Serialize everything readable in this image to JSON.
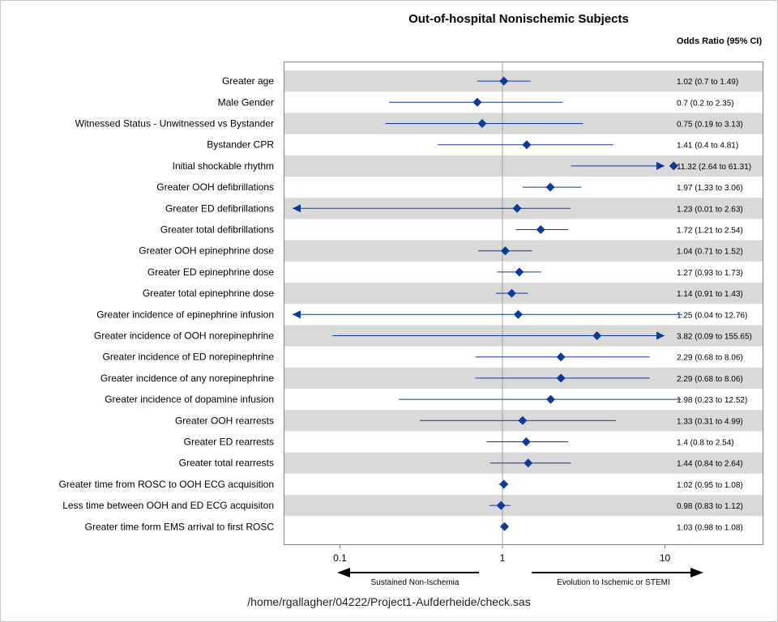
{
  "chart_data": {
    "type": "forest",
    "title": "Out-of-hospital Nonischemic Subjects",
    "estimate_column_header": "Odds Ratio (95% CI)",
    "x_scale": "log",
    "xlim": [
      0.05,
      15
    ],
    "x_ticks": [
      0.1,
      1,
      10
    ],
    "x_tick_labels": [
      "0.1",
      "1",
      "10"
    ],
    "reference_line": 1,
    "direction_labels": {
      "left": "Sustained Non-Ischemia",
      "right": "Evolution to Ischemic or STEMI"
    },
    "rows": [
      {
        "label": "Greater age",
        "or": 1.02,
        "lower": 0.7,
        "upper": 1.49,
        "text": "1.02 (0.7 to 1.49)"
      },
      {
        "label": "Male Gender",
        "or": 0.7,
        "lower": 0.2,
        "upper": 2.35,
        "text": "0.7 (0.2 to 2.35)"
      },
      {
        "label": "Witnessed Status - Unwitnessed vs Bystander",
        "or": 0.75,
        "lower": 0.19,
        "upper": 3.13,
        "text": "0.75 (0.19 to 3.13)"
      },
      {
        "label": "Bystander CPR",
        "or": 1.41,
        "lower": 0.4,
        "upper": 4.81,
        "text": "1.41 (0.4 to 4.81)"
      },
      {
        "label": "Initial shockable rhythm",
        "or": 11.32,
        "lower": 2.64,
        "upper": 61.31,
        "text": "11.32 (2.64 to 61.31)"
      },
      {
        "label": "Greater OOH defibrillations",
        "or": 1.97,
        "lower": 1.33,
        "upper": 3.06,
        "text": "1.97 (1.33 to 3.06)"
      },
      {
        "label": "Greater ED defibrillations",
        "or": 1.23,
        "lower": 0.01,
        "upper": 2.63,
        "text": "1.23 (0.01 to 2.63)"
      },
      {
        "label": "Greater total defibrillations",
        "or": 1.72,
        "lower": 1.21,
        "upper": 2.54,
        "text": "1.72 (1.21 to 2.54)"
      },
      {
        "label": "Greater OOH epinephrine dose",
        "or": 1.04,
        "lower": 0.71,
        "upper": 1.52,
        "text": "1.04 (0.71 to 1.52)"
      },
      {
        "label": "Greater ED epinephrine dose",
        "or": 1.27,
        "lower": 0.93,
        "upper": 1.73,
        "text": "1.27 (0.93 to 1.73)"
      },
      {
        "label": "Greater total epinephrine dose",
        "or": 1.14,
        "lower": 0.91,
        "upper": 1.43,
        "text": "1.14 (0.91 to 1.43)"
      },
      {
        "label": "Greater incidence of epinephrine infusion",
        "or": 1.25,
        "lower": 0.04,
        "upper": 12.76,
        "text": "1.25 (0.04 to 12.76)"
      },
      {
        "label": "Greater incidence of OOH norepinephrine",
        "or": 3.82,
        "lower": 0.09,
        "upper": 155.65,
        "text": "3.82 (0.09 to 155.65)"
      },
      {
        "label": "Greater incidence of ED norepinephrine",
        "or": 2.29,
        "lower": 0.68,
        "upper": 8.06,
        "text": "2.29 (0.68 to 8.06)"
      },
      {
        "label": "Greater incidence of any norepinephrine",
        "or": 2.29,
        "lower": 0.68,
        "upper": 8.06,
        "text": "2.29 (0.68 to 8.06)"
      },
      {
        "label": "Greater incidence of dopamine infusion",
        "or": 1.98,
        "lower": 0.23,
        "upper": 12.52,
        "text": "1.98 (0.23 to 12.52)"
      },
      {
        "label": "Greater OOH rearrests",
        "or": 1.33,
        "lower": 0.31,
        "upper": 4.99,
        "text": "1.33 (0.31 to 4.99)"
      },
      {
        "label": "Greater ED rearrests",
        "or": 1.4,
        "lower": 0.8,
        "upper": 2.54,
        "text": "1.4 (0.8 to 2.54)"
      },
      {
        "label": "Greater total rearrests",
        "or": 1.44,
        "lower": 0.84,
        "upper": 2.64,
        "text": "1.44 (0.84 to 2.64)"
      },
      {
        "label": "Greater time from ROSC to OOH ECG acquisition",
        "or": 1.02,
        "lower": 0.95,
        "upper": 1.08,
        "text": "1.02 (0.95 to 1.08)"
      },
      {
        "label": "Less time between OOH and ED ECG acquisiton",
        "or": 0.98,
        "lower": 0.83,
        "upper": 1.12,
        "text": "0.98 (0.83 to 1.12)"
      },
      {
        "label": "Greater time form EMS arrival to first ROSC",
        "or": 1.03,
        "lower": 0.98,
        "upper": 1.08,
        "text": "1.03 (0.98 to 1.08)"
      }
    ],
    "colors": {
      "marker": "#0a3a9a",
      "band": "#d9d9d9",
      "reference_line": "#a0a0a0",
      "axis": "#808080"
    }
  },
  "footer": {
    "program_path": "/home/rgallagher/04222/Project1-Aufderheide/check.sas"
  }
}
